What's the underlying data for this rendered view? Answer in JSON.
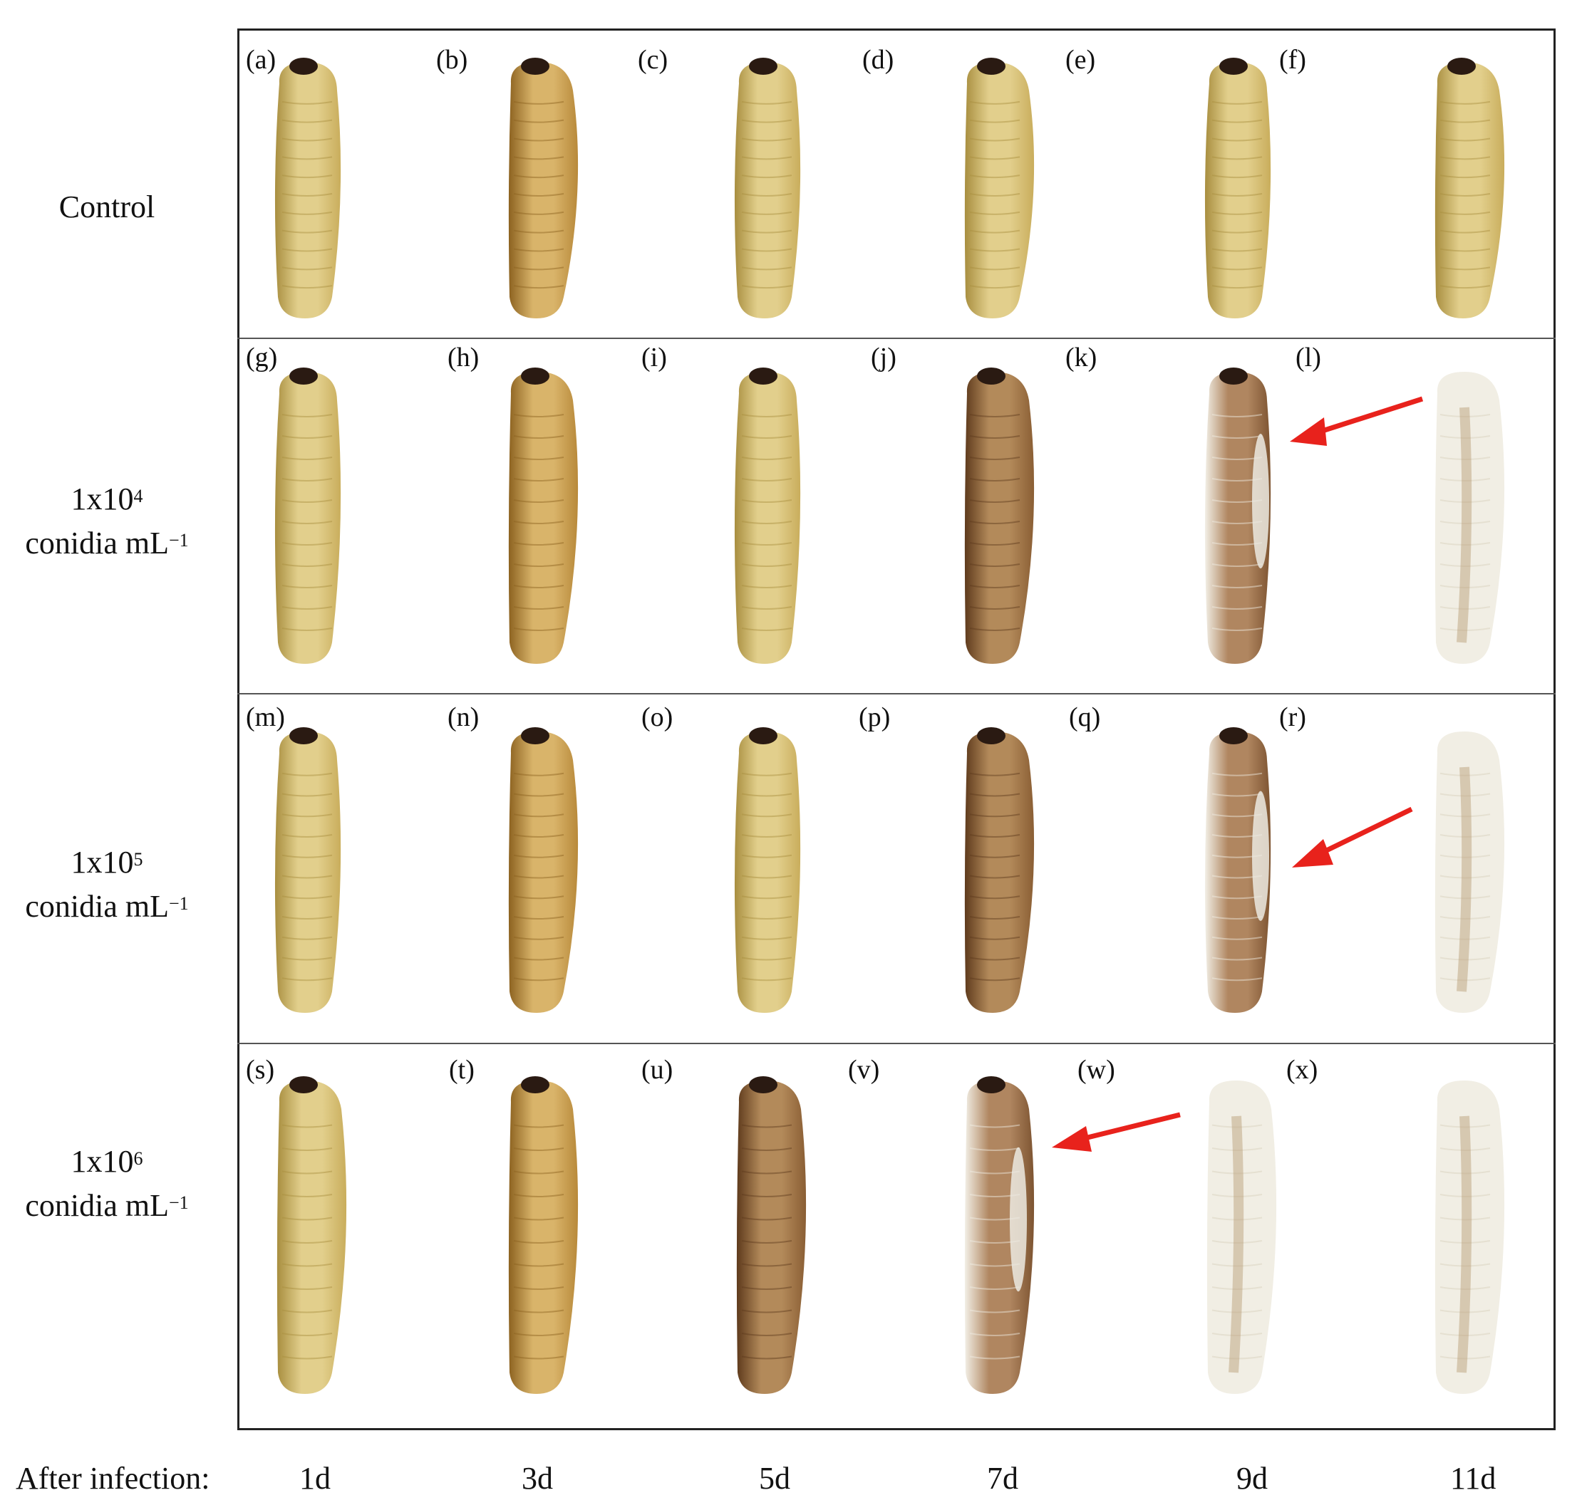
{
  "figure": {
    "rows": [
      {
        "line1": "Control",
        "line2": "",
        "exponent": ""
      },
      {
        "line1": "1x10",
        "exponent": "4",
        "line2": "conidia mL",
        "unit_exp": "−1"
      },
      {
        "line1": "1x10",
        "exponent": "5",
        "line2": "conidia mL",
        "unit_exp": "−1"
      },
      {
        "line1": "1x10",
        "exponent": "6",
        "line2": "conidia mL",
        "unit_exp": "−1"
      }
    ],
    "panel_letters": [
      [
        "(a)",
        "(b)",
        "(c)",
        "(d)",
        "(e)",
        "(f)"
      ],
      [
        "(g)",
        "(h)",
        "(i)",
        "(j)",
        "(k)",
        "(l)"
      ],
      [
        "(m)",
        "(n)",
        "(o)",
        "(p)",
        "(q)",
        "(r)"
      ],
      [
        "(s)",
        "(t)",
        "(u)",
        "(v)",
        "(w)",
        "(x)"
      ]
    ],
    "x_axis": {
      "prefix": "After infection:",
      "days": [
        "1d",
        "3d",
        "5d",
        "7d",
        "9d",
        "11d"
      ]
    },
    "colors": {
      "arrow": "#e8221c",
      "border": "#222222"
    },
    "larva_icons": [
      "healthy-larva",
      "infected-larva",
      "mycosed-larva"
    ]
  }
}
